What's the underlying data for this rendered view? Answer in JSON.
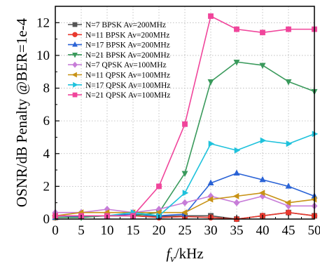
{
  "chart_data": {
    "type": "line",
    "x": [
      0,
      5,
      10,
      15,
      20,
      25,
      30,
      35,
      40,
      45,
      50
    ],
    "xticks": [
      "0",
      "5",
      "10",
      "15",
      "20",
      "25",
      "30",
      "35",
      "40",
      "45",
      "50"
    ],
    "yticks": [
      "0",
      "2",
      "4",
      "6",
      "8",
      "10",
      "12"
    ],
    "xlim": [
      0,
      50
    ],
    "ylim": [
      0,
      13
    ],
    "xlabel": {
      "var": "f",
      "sub": "v",
      "rest": "/kHz"
    },
    "ylabel": "OSNR/dB Penalty @BER=1e-4",
    "grid": true,
    "legend_position": "top-left",
    "series": [
      {
        "name": "N=7   BPSK  Av=200MHz",
        "color": "#555555",
        "marker": "square",
        "values": [
          0.1,
          0.15,
          0.2,
          0.2,
          0.15,
          0.2,
          0.2,
          0.0,
          0.2,
          0.4,
          0.2
        ]
      },
      {
        "name": "N=11  BPSK  Av=200MHz",
        "color": "#e8392f",
        "marker": "circle",
        "values": [
          0.1,
          0.15,
          0.2,
          0.2,
          0.1,
          0.15,
          0.1,
          0.0,
          0.2,
          0.4,
          0.2
        ]
      },
      {
        "name": "N=17  BPSK  Av=200MHz",
        "color": "#2a63d6",
        "marker": "triangle-up",
        "values": [
          0.1,
          0.15,
          0.2,
          0.3,
          0.2,
          0.3,
          2.2,
          2.8,
          2.4,
          2.0,
          1.4
        ]
      },
      {
        "name": "N=21  BPSK  Av=200MHz",
        "color": "#3a9a5c",
        "marker": "triangle-down",
        "values": [
          0.1,
          0.1,
          0.2,
          0.2,
          0.4,
          2.8,
          8.4,
          9.6,
          9.4,
          8.4,
          7.8
        ]
      },
      {
        "name": "N=7   QPSK  Av=100MHz",
        "color": "#c77dd8",
        "marker": "diamond",
        "values": [
          0.4,
          0.4,
          0.6,
          0.4,
          0.6,
          1.0,
          1.4,
          1.0,
          1.4,
          0.8,
          0.8
        ]
      },
      {
        "name": "N=11  QPSK  Av=100MHz",
        "color": "#c89216",
        "marker": "triangle-left",
        "values": [
          0.2,
          0.4,
          0.4,
          0.4,
          0.4,
          0.4,
          1.2,
          1.4,
          1.6,
          1.0,
          1.2
        ]
      },
      {
        "name": "N=17  QPSK  Av=100MHz",
        "color": "#1ec2dc",
        "marker": "triangle-right",
        "values": [
          0.2,
          0.2,
          0.2,
          0.4,
          0.2,
          1.6,
          4.6,
          4.2,
          4.8,
          4.6,
          5.2
        ]
      },
      {
        "name": "N=21  QPSK  Av=100MHz",
        "color": "#f0459b",
        "marker": "square",
        "values": [
          0.2,
          0.2,
          0.2,
          0.2,
          2.0,
          5.8,
          12.4,
          11.6,
          11.4,
          11.6,
          11.6
        ]
      }
    ]
  }
}
